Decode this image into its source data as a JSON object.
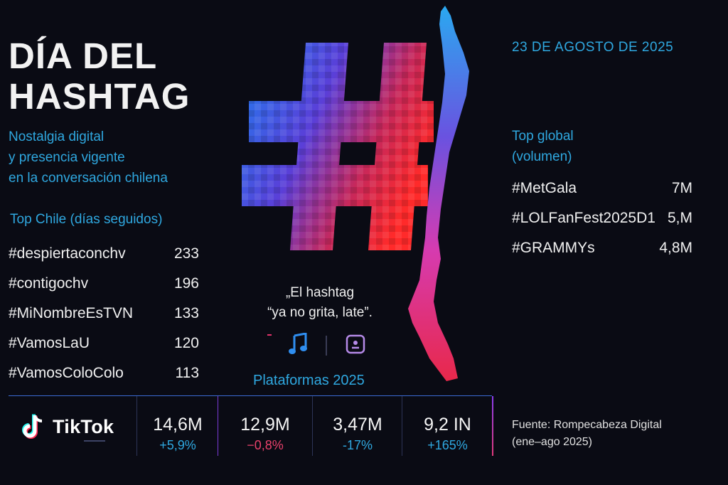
{
  "header": {
    "title_line1": "DÍA DEL",
    "title_line2": "HASHTAG",
    "subtitle_lines": [
      "Nostalgia digital",
      "y presencia vigente",
      "en la conversación chilena"
    ],
    "date": "23 DE AGOSTO DE 2025"
  },
  "top_chile": {
    "title": "Top Chile (días seguidos)",
    "items": [
      {
        "tag": "#despiertaconchv",
        "value": "233"
      },
      {
        "tag": "#contigochv",
        "value": "196"
      },
      {
        "tag": "#MiNombreEsTVN",
        "value": "133"
      },
      {
        "tag": "#VamosLaU",
        "value": "120"
      },
      {
        "tag": "#VamosColoColo",
        "value": "113"
      }
    ]
  },
  "top_global": {
    "title_line1": "Top global",
    "title_line2": "(volumen)",
    "items": [
      {
        "tag": "#MetGala",
        "value": "7M"
      },
      {
        "tag": "#LOLFanFest2025D1",
        "value": "5,M"
      },
      {
        "tag": "#GRAMMYs",
        "value": "4,8M"
      }
    ]
  },
  "center": {
    "quote_line1": "„El hashtag",
    "quote_line2": "“ya no grita, late”.",
    "icons": [
      "music-note-icon",
      "square-face-icon"
    ]
  },
  "platforms": {
    "title": "Plataformas 2025",
    "brand": "TikTok",
    "stats": [
      {
        "value": "14,6M",
        "change": "+5,9%",
        "color": "#2fa8e0"
      },
      {
        "value": "12,9M",
        "change": "−0,8%",
        "color": "#e8416b"
      },
      {
        "value": "3,47M",
        "change": "-17%",
        "color": "#2fa8e0"
      },
      {
        "value": "9,2 IN",
        "change": "+165%",
        "color": "#2fa8e0"
      }
    ]
  },
  "source": {
    "line1": "Fuente: Rompecabeza Digital",
    "line2": "(ene–ago 2025)"
  },
  "colors": {
    "background": "#0a0b14",
    "accent_blue": "#2fa8e0",
    "accent_red": "#e8416b",
    "accent_purple": "#7a3bd6"
  }
}
